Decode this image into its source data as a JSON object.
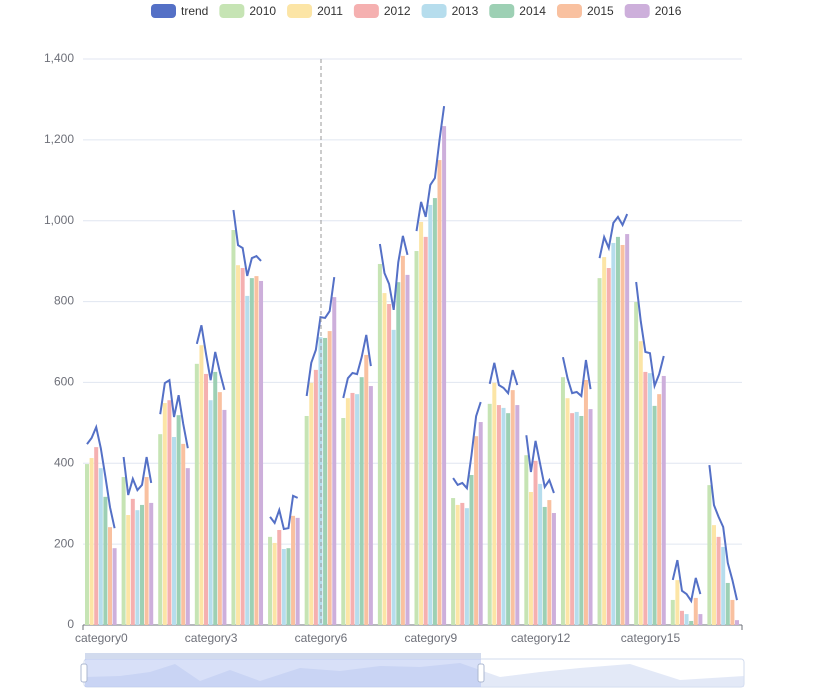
{
  "chart_data": {
    "type": "bar",
    "categories": [
      "category0",
      null,
      null,
      "category3",
      null,
      null,
      "category6",
      null,
      null,
      "category9",
      null,
      null,
      "category12",
      null,
      null,
      "category15",
      null,
      null
    ],
    "trend_name": "trend",
    "trend_color": "#5470c6",
    "series": [
      {
        "name": "2010",
        "color": "#c6e4b4",
        "values": [
          398,
          366,
          472,
          646,
          977,
          218,
          517,
          512,
          893,
          925,
          314,
          547,
          420,
          613,
          858,
          799,
          62,
          346
        ]
      },
      {
        "name": "2011",
        "color": "#fce5a6",
        "values": [
          413,
          272,
          549,
          692,
          890,
          203,
          599,
          561,
          821,
          997,
          297,
          599,
          329,
          561,
          910,
          702,
          111,
          247
        ]
      },
      {
        "name": "2012",
        "color": "#f5b0b0",
        "values": [
          440,
          312,
          556,
          621,
          883,
          235,
          631,
          574,
          794,
          960,
          302,
          544,
          406,
          524,
          883,
          626,
          35,
          218
        ]
      },
      {
        "name": "2013",
        "color": "#b6dded",
        "values": [
          388,
          284,
          465,
          556,
          814,
          188,
          712,
          571,
          730,
          1039,
          289,
          537,
          349,
          527,
          945,
          623,
          27,
          193
        ]
      },
      {
        "name": "2014",
        "color": "#9dd0b4",
        "values": [
          317,
          297,
          519,
          626,
          858,
          190,
          710,
          613,
          848,
          1056,
          371,
          524,
          292,
          517,
          960,
          542,
          10,
          104
        ]
      },
      {
        "name": "2015",
        "color": "#f9c1a0",
        "values": [
          242,
          366,
          448,
          576,
          863,
          270,
          727,
          668,
          913,
          1150,
          467,
          581,
          309,
          606,
          940,
          571,
          67,
          62
        ]
      },
      {
        "name": "2016",
        "color": "#cdafdb",
        "values": [
          190,
          302,
          388,
          532,
          851,
          265,
          811,
          591,
          866,
          1234,
          502,
          544,
          277,
          534,
          967,
          616,
          27,
          12
        ]
      }
    ],
    "ylim": [
      0,
      1400
    ],
    "yticks": [
      0,
      200,
      400,
      600,
      800,
      {
        "value": 1000,
        "label": "1,000"
      },
      {
        "value": 1200,
        "label": "1,200"
      },
      {
        "value": 1400,
        "label": "1,400"
      }
    ],
    "grid": true
  }
}
